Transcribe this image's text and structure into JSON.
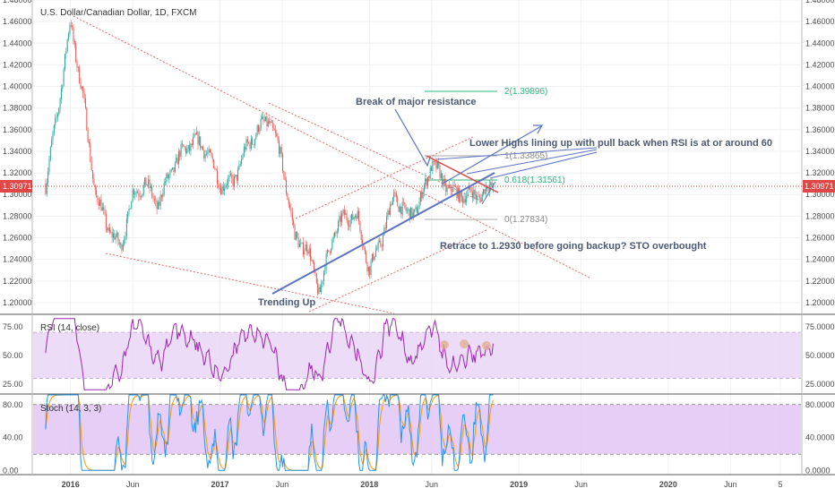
{
  "header": {
    "title": "U.S. Dollar/Canadian Dollar, 1D, FXCM"
  },
  "price_label": "1.30971",
  "colors": {
    "candle_up": "#26a69a",
    "candle_down": "#ef5350",
    "trend_blue": "#5b74c2",
    "dotted_red": "#e06a6a",
    "rsi_line": "#9c27b0",
    "rsi_band": "#e8d3f5",
    "stoch_band": "#e2c6f5",
    "stoch_k": "#2196f3",
    "stoch_d": "#ff9800",
    "fib_green": "#2db67c",
    "annotation": "#4c5a74"
  },
  "annotations": {
    "break_resistance": "Break of major resistance",
    "lower_highs": "Lower Highs lining up with pull back when RSI is at or around 60",
    "retrace": "Retrace to 1.2930 before going backup?  STO overbought",
    "trending_up": "Trending Up",
    "fib_2": "2(1.39896)",
    "fib_1": "1(1.33865)",
    "fib_0618": "0.618(1.31561)",
    "fib_0": "0(1.27834)"
  },
  "chart_data": [
    {
      "type": "candlestick",
      "title": "U.S. Dollar/Canadian Dollar, 1D, FXCM",
      "y_ticks": [
        "1.48000",
        "1.46000",
        "1.44000",
        "1.42000",
        "1.40000",
        "1.38000",
        "1.36000",
        "1.34000",
        "1.32000",
        "1.30000",
        "1.28000",
        "1.26000",
        "1.24000",
        "1.22000",
        "1.20000"
      ],
      "ylim": [
        1.19,
        1.48
      ],
      "x_ticks": [
        "2016",
        "Jun",
        "2017",
        "Jun",
        "2018",
        "Jun",
        "2019",
        "Jun",
        "2020",
        "Jun",
        "5"
      ],
      "last_price": 1.30971,
      "series_path": [
        [
          "2015-11",
          1.31
        ],
        [
          "2015-12",
          1.38
        ],
        [
          "2016-01",
          1.46
        ],
        [
          "2016-02",
          1.39
        ],
        [
          "2016-03",
          1.3
        ],
        [
          "2016-04",
          1.27
        ],
        [
          "2016-05",
          1.25
        ],
        [
          "2016-06",
          1.3
        ],
        [
          "2016-07",
          1.31
        ],
        [
          "2016-08",
          1.29
        ],
        [
          "2016-09",
          1.32
        ],
        [
          "2016-10",
          1.34
        ],
        [
          "2016-11",
          1.35
        ],
        [
          "2016-12",
          1.34
        ],
        [
          "2017-01",
          1.31
        ],
        [
          "2017-02",
          1.31
        ],
        [
          "2017-03",
          1.34
        ],
        [
          "2017-04",
          1.36
        ],
        [
          "2017-05",
          1.37
        ],
        [
          "2017-06",
          1.33
        ],
        [
          "2017-07",
          1.26
        ],
        [
          "2017-08",
          1.25
        ],
        [
          "2017-09",
          1.21
        ],
        [
          "2017-10",
          1.26
        ],
        [
          "2017-11",
          1.28
        ],
        [
          "2017-12",
          1.28
        ],
        [
          "2018-01",
          1.23
        ],
        [
          "2018-02",
          1.26
        ],
        [
          "2018-03",
          1.3
        ],
        [
          "2018-04",
          1.28
        ],
        [
          "2018-05",
          1.29
        ],
        [
          "2018-06",
          1.33
        ],
        [
          "2018-07",
          1.31
        ],
        [
          "2018-08",
          1.3
        ],
        [
          "2018-09",
          1.3
        ],
        [
          "2018-10",
          1.3
        ],
        [
          "2018-11",
          1.31
        ]
      ]
    },
    {
      "type": "line",
      "title": "RSI (14, close)",
      "y_ticks": [
        "75.0000",
        "50.0000",
        "25.0000"
      ],
      "ylim": [
        17,
        85
      ],
      "bands": [
        30,
        70
      ]
    },
    {
      "type": "line",
      "title": "Stoch (14, 3, 3)",
      "y_ticks": [
        "80.0000",
        "40.0000",
        "0.0000"
      ],
      "ylim": [
        -4,
        92
      ],
      "bands": [
        20,
        80
      ]
    }
  ]
}
